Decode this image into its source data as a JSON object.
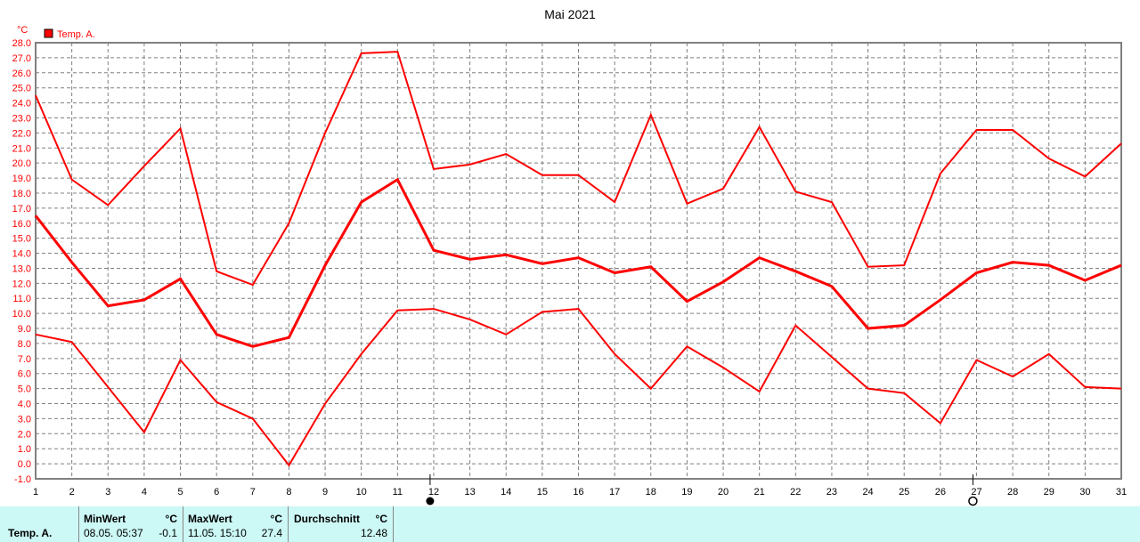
{
  "chart_data": {
    "type": "line",
    "title": "Mai 2021",
    "ylabel": "°C",
    "ylim": [
      -1,
      28
    ],
    "ytick_step": 1,
    "grid": true,
    "legend": {
      "position": "top-left",
      "entries": [
        "Temp. A."
      ]
    },
    "x": [
      1,
      2,
      3,
      4,
      5,
      6,
      7,
      8,
      9,
      10,
      11,
      12,
      13,
      14,
      15,
      16,
      17,
      18,
      19,
      20,
      21,
      22,
      23,
      24,
      25,
      26,
      27,
      28,
      29,
      30,
      31
    ],
    "series": [
      {
        "role": "max",
        "values": [
          24.5,
          18.9,
          17.2,
          19.8,
          22.3,
          12.8,
          11.9,
          16.0,
          22.0,
          27.3,
          27.4,
          19.6,
          19.9,
          20.6,
          19.2,
          19.2,
          17.4,
          23.2,
          17.3,
          18.3,
          22.4,
          18.1,
          17.4,
          13.1,
          13.2,
          19.3,
          22.2,
          22.2,
          20.3,
          19.1,
          21.3
        ]
      },
      {
        "role": "mean",
        "values": [
          16.5,
          13.4,
          10.5,
          10.9,
          12.3,
          8.6,
          7.8,
          8.4,
          13.2,
          17.4,
          18.9,
          14.2,
          13.6,
          13.9,
          13.3,
          13.7,
          12.7,
          13.1,
          10.8,
          12.1,
          13.7,
          12.8,
          11.8,
          9.0,
          9.2,
          10.9,
          12.7,
          13.4,
          13.2,
          12.2,
          13.2
        ]
      },
      {
        "role": "min",
        "values": [
          8.6,
          8.1,
          5.1,
          2.1,
          6.9,
          4.1,
          3.0,
          -0.1,
          4.0,
          7.3,
          10.2,
          10.3,
          9.6,
          8.6,
          10.1,
          10.3,
          7.3,
          5.0,
          7.8,
          6.4,
          4.8,
          9.2,
          7.1,
          5.0,
          4.7,
          2.7,
          6.9,
          5.8,
          7.3,
          5.1,
          5.0
        ]
      }
    ],
    "moon_phases": [
      {
        "day": 11.9,
        "phase": "full-moon"
      },
      {
        "day": 26.9,
        "phase": "new-moon"
      }
    ],
    "colors": {
      "line": "#ff0000",
      "grid": "#808080",
      "axis_labels": "#ff0000"
    }
  },
  "footer": {
    "series_label": "Temp. A.",
    "min": {
      "label": "MinWert",
      "unit": "°C",
      "date": "08.05.  05:37",
      "value": "-0.1"
    },
    "max": {
      "label": "MaxWert",
      "unit": "°C",
      "date": "11.05.  15:10",
      "value": "27.4"
    },
    "avg": {
      "label": "Durchschnitt",
      "unit": "°C",
      "value": "12.48"
    }
  }
}
